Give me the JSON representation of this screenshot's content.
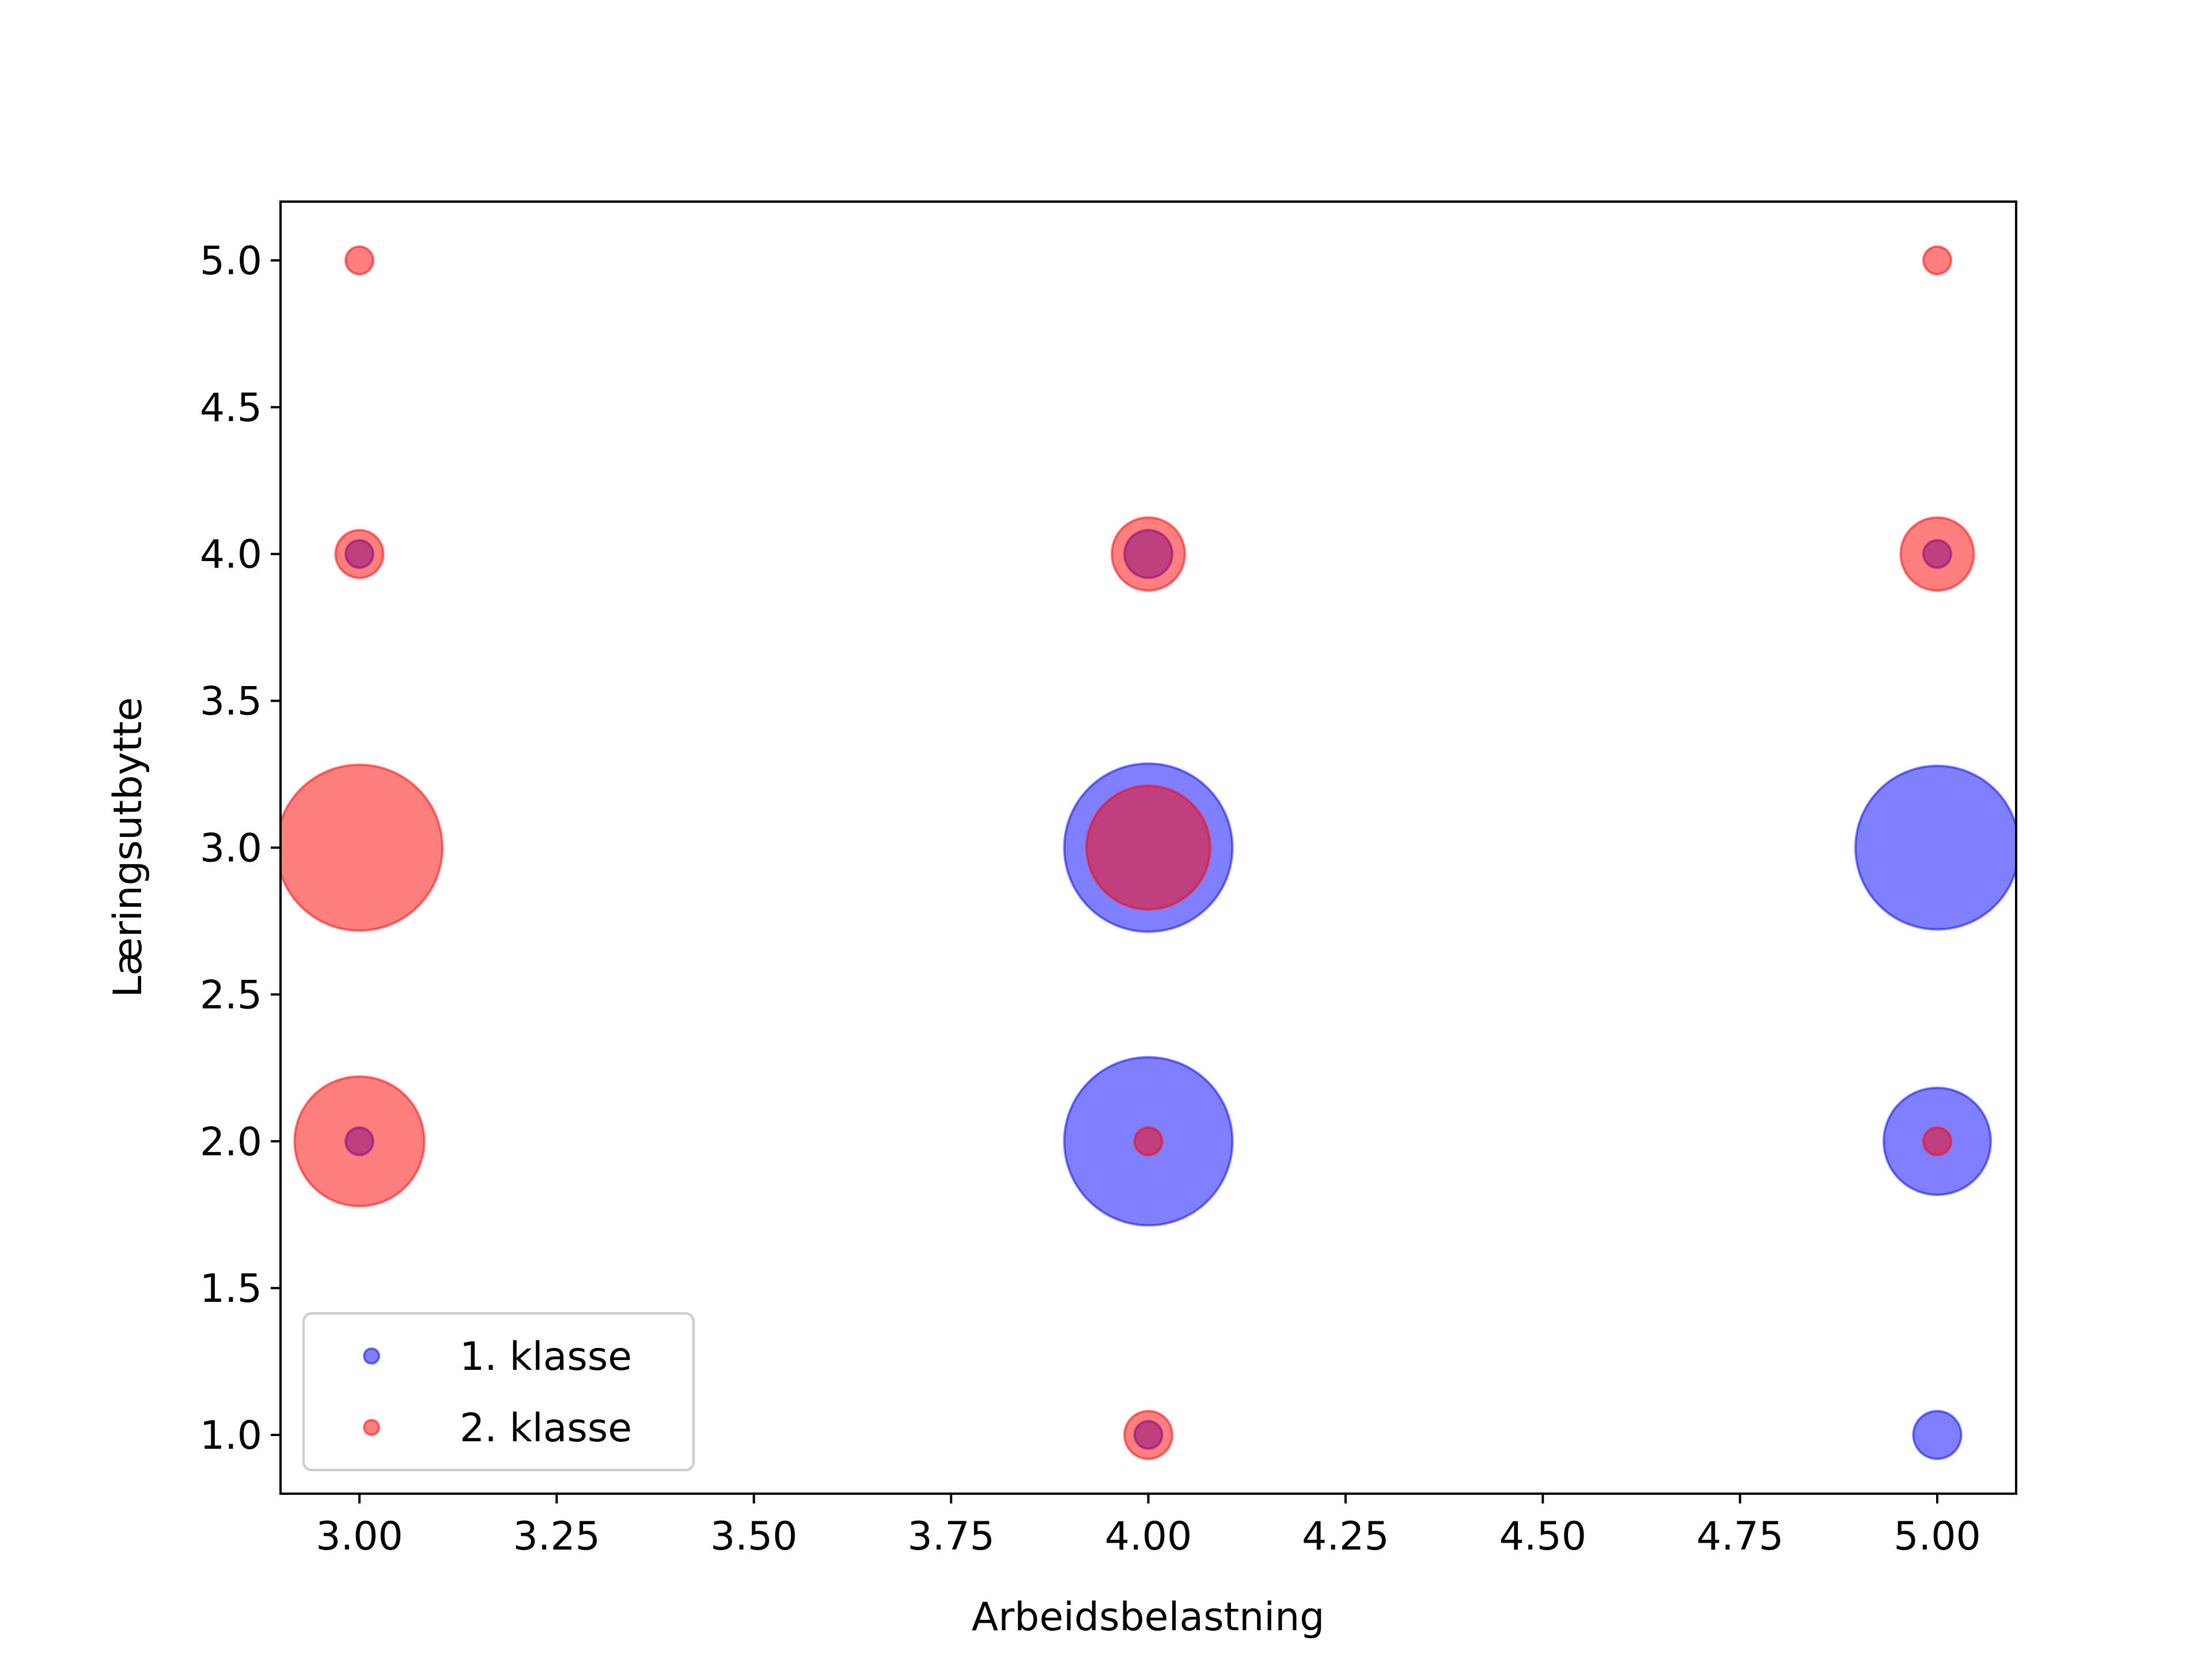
{
  "chart_data": {
    "type": "scatter",
    "title": "",
    "xlabel": "Arbeidsbelastning",
    "ylabel": "Læringsutbytte",
    "xlim": [
      2.9,
      5.1
    ],
    "ylim": [
      0.8,
      5.2
    ],
    "xticks": [
      "3.00",
      "3.25",
      "3.50",
      "3.75",
      "4.00",
      "4.25",
      "4.50",
      "4.75",
      "5.00"
    ],
    "yticks": [
      "1.0",
      "1.5",
      "2.0",
      "2.5",
      "3.0",
      "3.5",
      "4.0",
      "4.5",
      "5.0"
    ],
    "grid": false,
    "legend": "bottom-left",
    "series": [
      {
        "name": "1. klasse",
        "color": "#0000ff",
        "points": [
          {
            "x": 3,
            "y": 2,
            "size": 1
          },
          {
            "x": 3,
            "y": 4,
            "size": 1
          },
          {
            "x": 4,
            "y": 1,
            "size": 1
          },
          {
            "x": 4,
            "y": 2,
            "size": 37
          },
          {
            "x": 4,
            "y": 3,
            "size": 37
          },
          {
            "x": 4,
            "y": 4,
            "size": 3
          },
          {
            "x": 5,
            "y": 1,
            "size": 3
          },
          {
            "x": 5,
            "y": 2,
            "size": 15
          },
          {
            "x": 5,
            "y": 3,
            "size": 35
          },
          {
            "x": 5,
            "y": 4,
            "size": 1
          }
        ]
      },
      {
        "name": "2. klasse",
        "color": "#ff0000",
        "points": [
          {
            "x": 3,
            "y": 2,
            "size": 22
          },
          {
            "x": 3,
            "y": 3,
            "size": 36
          },
          {
            "x": 3,
            "y": 4,
            "size": 3
          },
          {
            "x": 3,
            "y": 5,
            "size": 1
          },
          {
            "x": 4,
            "y": 1,
            "size": 3
          },
          {
            "x": 4,
            "y": 2,
            "size": 1
          },
          {
            "x": 4,
            "y": 3,
            "size": 20
          },
          {
            "x": 4,
            "y": 4,
            "size": 7
          },
          {
            "x": 5,
            "y": 2,
            "size": 1
          },
          {
            "x": 5,
            "y": 4,
            "size": 7
          },
          {
            "x": 5,
            "y": 5,
            "size": 1
          }
        ]
      }
    ]
  }
}
